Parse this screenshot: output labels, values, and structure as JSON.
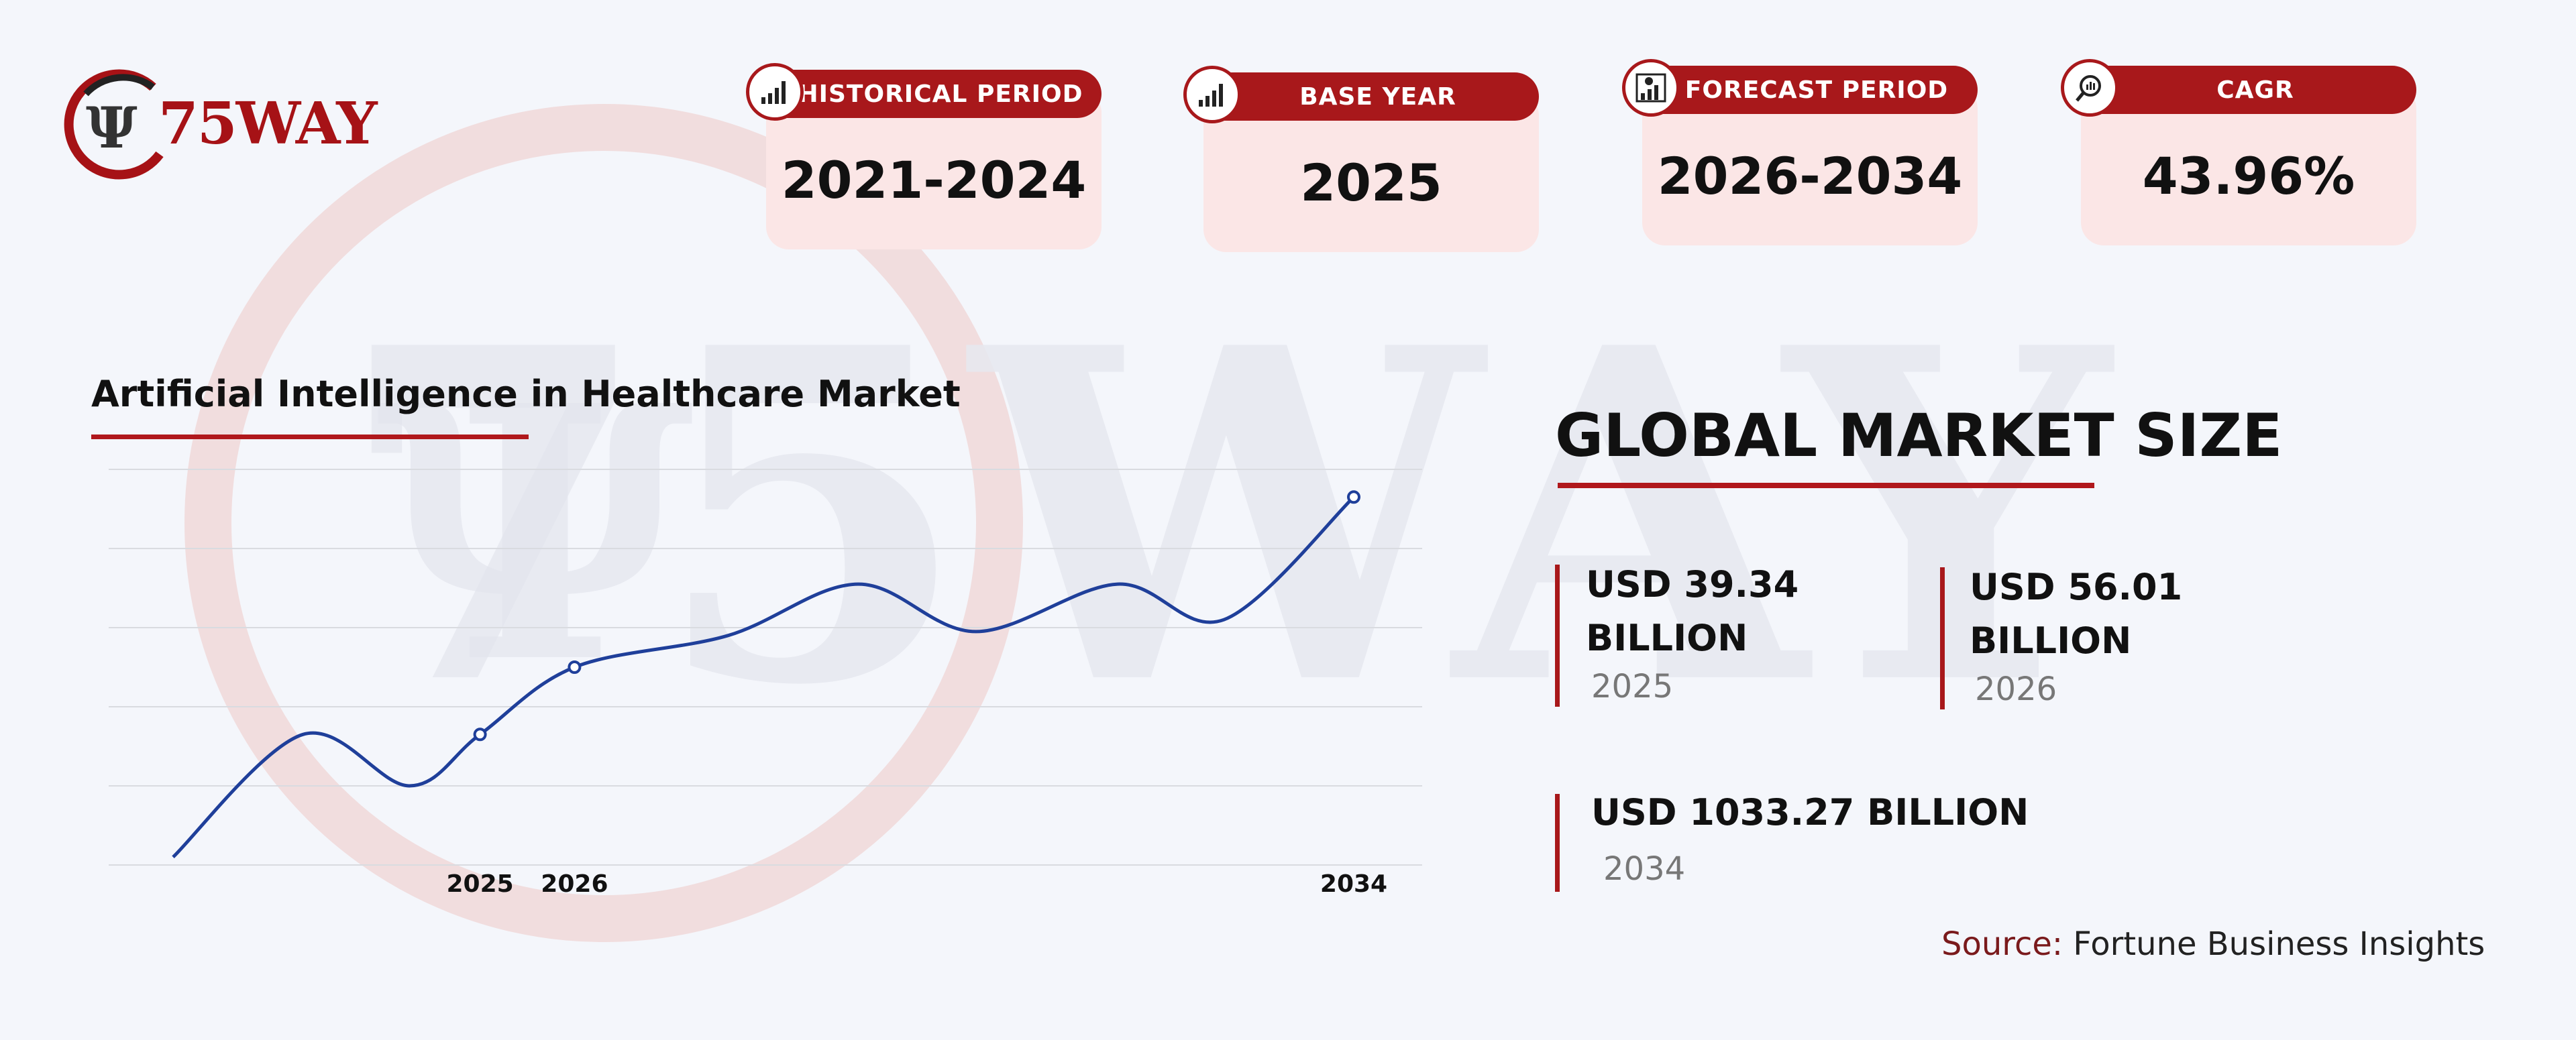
{
  "brand": {
    "name": "75WAY",
    "accent": "#a8181b"
  },
  "cards": [
    {
      "label": "HISTORICAL PERIOD",
      "value": "2021-2024",
      "icon": "bar-chart-icon"
    },
    {
      "label": "BASE YEAR",
      "value": "2025",
      "icon": "bar-chart-icon"
    },
    {
      "label": "FORECAST PERIOD",
      "value": "2026-2034",
      "icon": "growth-chart-icon"
    },
    {
      "label": "CAGR",
      "value": "43.96%",
      "icon": "magnifier-chart-icon"
    }
  ],
  "chart_data": {
    "type": "line",
    "title": "Artificial Intelligence in Healthcare Market",
    "x_tick_labels": [
      "2025",
      "2026",
      "2034"
    ],
    "grid": true,
    "curve_points": [
      [
        0,
        0.02
      ],
      [
        0.11,
        0.33
      ],
      [
        0.2,
        0.2
      ],
      [
        0.26,
        0.33
      ],
      [
        0.34,
        0.5
      ],
      [
        0.47,
        0.58
      ],
      [
        0.58,
        0.71
      ],
      [
        0.68,
        0.59
      ],
      [
        0.8,
        0.71
      ],
      [
        0.89,
        0.62
      ],
      [
        1.0,
        0.93
      ]
    ],
    "highlighted_points": [
      [
        0.26,
        0.33
      ],
      [
        0.34,
        0.5
      ],
      [
        1.0,
        0.93
      ]
    ],
    "line_color": "#1f3f9a"
  },
  "market": {
    "title": "GLOBAL MARKET SIZE",
    "stats": [
      {
        "line1": "USD 39.34",
        "line2": "BILLION",
        "year": "2025"
      },
      {
        "line1": "USD 56.01",
        "line2": "BILLION",
        "year": "2026"
      },
      {
        "line1": "USD 1033.27 BILLION",
        "line2": "",
        "year": "2034"
      }
    ]
  },
  "source": {
    "label": "Source:",
    "text": "Fortune Business Insights"
  }
}
